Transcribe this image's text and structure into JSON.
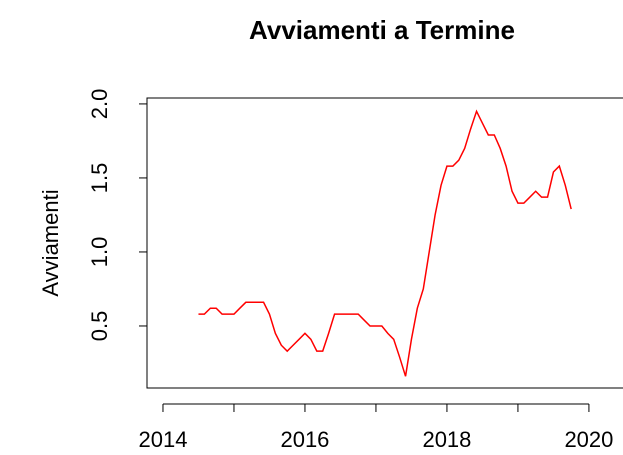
{
  "chart_data": {
    "type": "line",
    "title": "Avviamenti a Termine",
    "ylabel": "Avviamenti",
    "x": [
      2014.5,
      2014.583,
      2014.667,
      2014.75,
      2014.833,
      2014.917,
      2015,
      2015.083,
      2015.167,
      2015.25,
      2015.333,
      2015.417,
      2015.5,
      2015.583,
      2015.667,
      2015.75,
      2015.833,
      2015.917,
      2016,
      2016.083,
      2016.167,
      2016.25,
      2016.333,
      2016.417,
      2016.5,
      2016.583,
      2016.667,
      2016.75,
      2016.833,
      2016.917,
      2017,
      2017.083,
      2017.167,
      2017.25,
      2017.333,
      2017.417,
      2017.5,
      2017.583,
      2017.667,
      2017.75,
      2017.833,
      2017.917,
      2018,
      2018.083,
      2018.167,
      2018.25,
      2018.333,
      2018.417,
      2018.5,
      2018.583,
      2018.667,
      2018.75,
      2018.833,
      2018.917,
      2019,
      2019.083,
      2019.167,
      2019.25,
      2019.333,
      2019.417,
      2019.5,
      2019.583,
      2019.667,
      2019.75
    ],
    "series": [
      {
        "name": "Avviamenti",
        "color": "#ff0000",
        "values": [
          0.58,
          0.58,
          0.62,
          0.62,
          0.58,
          0.58,
          0.58,
          0.62,
          0.66,
          0.66,
          0.66,
          0.66,
          0.58,
          0.45,
          0.37,
          0.33,
          0.37,
          0.41,
          0.45,
          0.41,
          0.33,
          0.33,
          0.45,
          0.58,
          0.58,
          0.58,
          0.58,
          0.58,
          0.54,
          0.5,
          0.5,
          0.5,
          0.45,
          0.41,
          0.29,
          0.16,
          0.41,
          0.62,
          0.75,
          1.0,
          1.25,
          1.45,
          1.58,
          1.58,
          1.62,
          1.7,
          1.83,
          1.95,
          1.87,
          1.79,
          1.79,
          1.7,
          1.58,
          1.41,
          1.33,
          1.33,
          1.37,
          1.41,
          1.37,
          1.37,
          1.54,
          1.58,
          1.45,
          1.29
        ]
      }
    ],
    "xlim": [
      2013.775,
      2020.48
    ],
    "xticks": [
      2014,
      2016,
      2018,
      2020
    ],
    "xminor_ticks": [
      2015,
      2017,
      2019
    ],
    "ylim": [
      0.081,
      2.04
    ],
    "yticks": [
      0.5,
      {
        "value": 1,
        "label": "1.0"
      },
      1.5,
      {
        "value": 2,
        "label": "2.0"
      }
    ]
  }
}
